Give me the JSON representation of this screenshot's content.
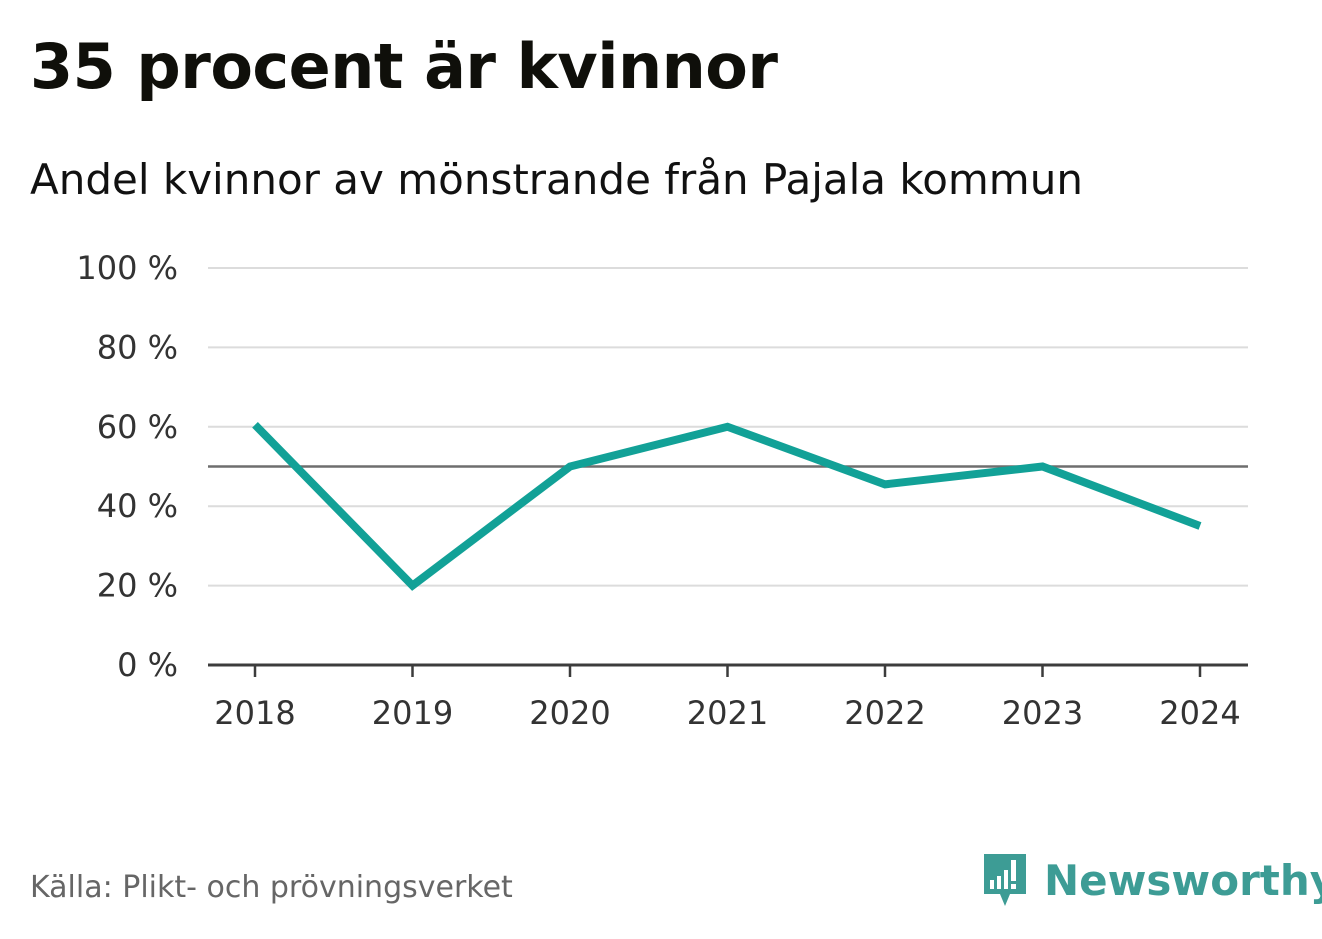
{
  "title": "35 procent är kvinnor",
  "subtitle": "Andel kvinnor av mönstrande från Pajala kommun",
  "source": "Källa: Plikt- och prövningsverket",
  "brand": {
    "name": "Newsworthy",
    "logo_icon": "newsworthy-logo-icon",
    "color": "#3d9c95"
  },
  "chart_data": {
    "type": "line",
    "categories": [
      "2018",
      "2019",
      "2020",
      "2021",
      "2022",
      "2023",
      "2024"
    ],
    "series": [
      {
        "values": [
          60.5,
          20,
          50,
          60,
          45.5,
          50,
          35
        ],
        "color": "#12a197"
      }
    ],
    "title": "35 procent är kvinnor",
    "subtitle": "Andel kvinnor av mönstrande från Pajala kommun",
    "xlabel": "",
    "ylabel": "",
    "ylim": [
      0,
      100
    ],
    "yticks": [
      0,
      20,
      40,
      60,
      80,
      100
    ],
    "ytick_labels": [
      "0 %",
      "20 %",
      "40 %",
      "60 %",
      "80 %",
      "100 %"
    ],
    "reference_line": 50,
    "grid": true,
    "legend": "none"
  }
}
